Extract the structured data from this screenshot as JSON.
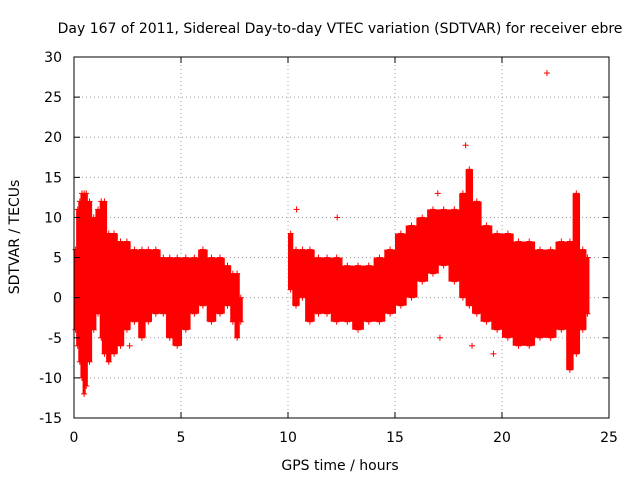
{
  "chart_data": {
    "type": "scatter",
    "title": "Day 167 of 2011, Sidereal Day-to-day VTEC variation (SDTVAR) for receiver ebre",
    "xlabel": "GPS time / hours",
    "ylabel": "SDTVAR / TECUs",
    "xlim": [
      0,
      25
    ],
    "ylim": [
      -15,
      30
    ],
    "grid": true,
    "x_ticks": [
      "0",
      "5",
      "10",
      "15",
      "20",
      "25"
    ],
    "y_ticks": [
      "-15",
      "-10",
      "-5",
      "0",
      "5",
      "10",
      "15",
      "20",
      "25",
      "30"
    ],
    "series_color": "#ff0000",
    "marker": "plus",
    "series": [
      {
        "name": "SDTVAR",
        "envelope": [
          {
            "x": 0.0,
            "min": -4,
            "max": 6
          },
          {
            "x": 0.1,
            "min": -6,
            "max": 11
          },
          {
            "x": 0.2,
            "min": -8,
            "max": 12
          },
          {
            "x": 0.3,
            "min": -10,
            "max": 13
          },
          {
            "x": 0.4,
            "min": -12,
            "max": 13
          },
          {
            "x": 0.5,
            "min": -11,
            "max": 13
          },
          {
            "x": 0.6,
            "min": -8,
            "max": 12
          },
          {
            "x": 0.8,
            "min": -4,
            "max": 10
          },
          {
            "x": 1.0,
            "min": -2,
            "max": 11
          },
          {
            "x": 1.2,
            "min": -5,
            "max": 12
          },
          {
            "x": 1.3,
            "min": -7,
            "max": 12
          },
          {
            "x": 1.5,
            "min": -8,
            "max": 8
          },
          {
            "x": 1.7,
            "min": -7,
            "max": 8
          },
          {
            "x": 2.0,
            "min": -6,
            "max": 7
          },
          {
            "x": 2.3,
            "min": -4,
            "max": 7
          },
          {
            "x": 2.6,
            "min": -3,
            "max": 6
          },
          {
            "x": 3.0,
            "min": -5,
            "max": 6
          },
          {
            "x": 3.3,
            "min": -3,
            "max": 6
          },
          {
            "x": 3.6,
            "min": -2,
            "max": 6
          },
          {
            "x": 4.0,
            "min": -2,
            "max": 5
          },
          {
            "x": 4.3,
            "min": -5,
            "max": 5
          },
          {
            "x": 4.6,
            "min": -6,
            "max": 5
          },
          {
            "x": 5.0,
            "min": -4,
            "max": 5
          },
          {
            "x": 5.4,
            "min": -2,
            "max": 5
          },
          {
            "x": 5.8,
            "min": -1,
            "max": 6
          },
          {
            "x": 6.2,
            "min": -3,
            "max": 5
          },
          {
            "x": 6.6,
            "min": -2,
            "max": 5
          },
          {
            "x": 7.0,
            "min": -1,
            "max": 4
          },
          {
            "x": 7.3,
            "min": -3,
            "max": 3
          },
          {
            "x": 7.5,
            "min": -5,
            "max": 3
          },
          {
            "x": 7.7,
            "min": -3,
            "max": 0
          },
          {
            "x": 10.0,
            "min": 1,
            "max": 8
          },
          {
            "x": 10.2,
            "min": -1,
            "max": 6
          },
          {
            "x": 10.5,
            "min": 0,
            "max": 6
          },
          {
            "x": 10.8,
            "min": -3,
            "max": 6
          },
          {
            "x": 11.2,
            "min": -2,
            "max": 5
          },
          {
            "x": 11.6,
            "min": -2,
            "max": 5
          },
          {
            "x": 12.0,
            "min": -3,
            "max": 5
          },
          {
            "x": 12.5,
            "min": -3,
            "max": 4
          },
          {
            "x": 13.0,
            "min": -4,
            "max": 4
          },
          {
            "x": 13.5,
            "min": -3,
            "max": 4
          },
          {
            "x": 14.0,
            "min": -3,
            "max": 5
          },
          {
            "x": 14.5,
            "min": -2,
            "max": 6
          },
          {
            "x": 15.0,
            "min": -1,
            "max": 8
          },
          {
            "x": 15.5,
            "min": 0,
            "max": 9
          },
          {
            "x": 16.0,
            "min": 2,
            "max": 10
          },
          {
            "x": 16.5,
            "min": 3,
            "max": 11
          },
          {
            "x": 17.0,
            "min": 4,
            "max": 11
          },
          {
            "x": 17.5,
            "min": 2,
            "max": 11
          },
          {
            "x": 18.0,
            "min": 0,
            "max": 13
          },
          {
            "x": 18.3,
            "min": -1,
            "max": 16
          },
          {
            "x": 18.6,
            "min": -2,
            "max": 12
          },
          {
            "x": 19.0,
            "min": -3,
            "max": 9
          },
          {
            "x": 19.5,
            "min": -4,
            "max": 8
          },
          {
            "x": 20.0,
            "min": -5,
            "max": 8
          },
          {
            "x": 20.5,
            "min": -6,
            "max": 7
          },
          {
            "x": 21.0,
            "min": -6,
            "max": 7
          },
          {
            "x": 21.5,
            "min": -5,
            "max": 6
          },
          {
            "x": 22.0,
            "min": -5,
            "max": 6
          },
          {
            "x": 22.5,
            "min": -4,
            "max": 7
          },
          {
            "x": 23.0,
            "min": -9,
            "max": 7
          },
          {
            "x": 23.3,
            "min": -7,
            "max": 13
          },
          {
            "x": 23.6,
            "min": -4,
            "max": 6
          },
          {
            "x": 23.9,
            "min": -2,
            "max": 5
          }
        ],
        "outliers": [
          {
            "x": 2.6,
            "y": -6
          },
          {
            "x": 10.4,
            "y": 11
          },
          {
            "x": 12.3,
            "y": 10
          },
          {
            "x": 17.0,
            "y": 13
          },
          {
            "x": 17.1,
            "y": -5
          },
          {
            "x": 18.3,
            "y": 19
          },
          {
            "x": 18.6,
            "y": -6
          },
          {
            "x": 19.6,
            "y": -7
          },
          {
            "x": 22.1,
            "y": 28
          }
        ]
      }
    ]
  }
}
